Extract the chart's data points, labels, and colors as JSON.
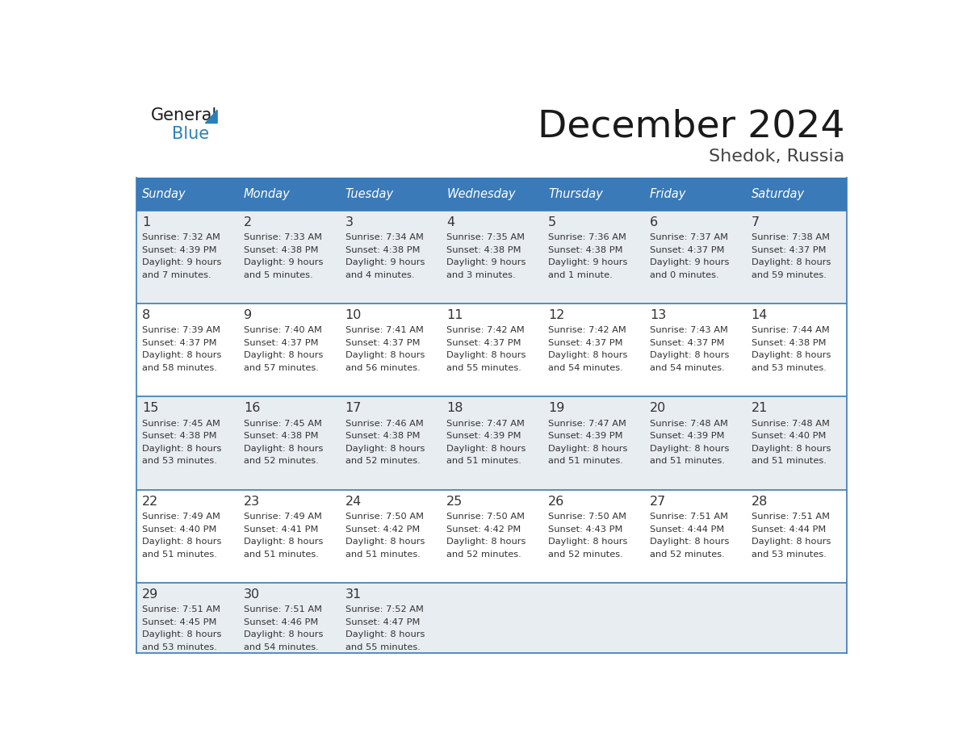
{
  "title": "December 2024",
  "subtitle": "Shedok, Russia",
  "header_color": "#3a7ab8",
  "header_text_color": "#ffffff",
  "day_names": [
    "Sunday",
    "Monday",
    "Tuesday",
    "Wednesday",
    "Thursday",
    "Friday",
    "Saturday"
  ],
  "weeks": [
    [
      {
        "day": 1,
        "sunrise": "7:32 AM",
        "sunset": "4:39 PM",
        "daylight": "9 hours",
        "daylight2": "and 7 minutes."
      },
      {
        "day": 2,
        "sunrise": "7:33 AM",
        "sunset": "4:38 PM",
        "daylight": "9 hours",
        "daylight2": "and 5 minutes."
      },
      {
        "day": 3,
        "sunrise": "7:34 AM",
        "sunset": "4:38 PM",
        "daylight": "9 hours",
        "daylight2": "and 4 minutes."
      },
      {
        "day": 4,
        "sunrise": "7:35 AM",
        "sunset": "4:38 PM",
        "daylight": "9 hours",
        "daylight2": "and 3 minutes."
      },
      {
        "day": 5,
        "sunrise": "7:36 AM",
        "sunset": "4:38 PM",
        "daylight": "9 hours",
        "daylight2": "and 1 minute."
      },
      {
        "day": 6,
        "sunrise": "7:37 AM",
        "sunset": "4:37 PM",
        "daylight": "9 hours",
        "daylight2": "and 0 minutes."
      },
      {
        "day": 7,
        "sunrise": "7:38 AM",
        "sunset": "4:37 PM",
        "daylight": "8 hours",
        "daylight2": "and 59 minutes."
      }
    ],
    [
      {
        "day": 8,
        "sunrise": "7:39 AM",
        "sunset": "4:37 PM",
        "daylight": "8 hours",
        "daylight2": "and 58 minutes."
      },
      {
        "day": 9,
        "sunrise": "7:40 AM",
        "sunset": "4:37 PM",
        "daylight": "8 hours",
        "daylight2": "and 57 minutes."
      },
      {
        "day": 10,
        "sunrise": "7:41 AM",
        "sunset": "4:37 PM",
        "daylight": "8 hours",
        "daylight2": "and 56 minutes."
      },
      {
        "day": 11,
        "sunrise": "7:42 AM",
        "sunset": "4:37 PM",
        "daylight": "8 hours",
        "daylight2": "and 55 minutes."
      },
      {
        "day": 12,
        "sunrise": "7:42 AM",
        "sunset": "4:37 PM",
        "daylight": "8 hours",
        "daylight2": "and 54 minutes."
      },
      {
        "day": 13,
        "sunrise": "7:43 AM",
        "sunset": "4:37 PM",
        "daylight": "8 hours",
        "daylight2": "and 54 minutes."
      },
      {
        "day": 14,
        "sunrise": "7:44 AM",
        "sunset": "4:38 PM",
        "daylight": "8 hours",
        "daylight2": "and 53 minutes."
      }
    ],
    [
      {
        "day": 15,
        "sunrise": "7:45 AM",
        "sunset": "4:38 PM",
        "daylight": "8 hours",
        "daylight2": "and 53 minutes."
      },
      {
        "day": 16,
        "sunrise": "7:45 AM",
        "sunset": "4:38 PM",
        "daylight": "8 hours",
        "daylight2": "and 52 minutes."
      },
      {
        "day": 17,
        "sunrise": "7:46 AM",
        "sunset": "4:38 PM",
        "daylight": "8 hours",
        "daylight2": "and 52 minutes."
      },
      {
        "day": 18,
        "sunrise": "7:47 AM",
        "sunset": "4:39 PM",
        "daylight": "8 hours",
        "daylight2": "and 51 minutes."
      },
      {
        "day": 19,
        "sunrise": "7:47 AM",
        "sunset": "4:39 PM",
        "daylight": "8 hours",
        "daylight2": "and 51 minutes."
      },
      {
        "day": 20,
        "sunrise": "7:48 AM",
        "sunset": "4:39 PM",
        "daylight": "8 hours",
        "daylight2": "and 51 minutes."
      },
      {
        "day": 21,
        "sunrise": "7:48 AM",
        "sunset": "4:40 PM",
        "daylight": "8 hours",
        "daylight2": "and 51 minutes."
      }
    ],
    [
      {
        "day": 22,
        "sunrise": "7:49 AM",
        "sunset": "4:40 PM",
        "daylight": "8 hours",
        "daylight2": "and 51 minutes."
      },
      {
        "day": 23,
        "sunrise": "7:49 AM",
        "sunset": "4:41 PM",
        "daylight": "8 hours",
        "daylight2": "and 51 minutes."
      },
      {
        "day": 24,
        "sunrise": "7:50 AM",
        "sunset": "4:42 PM",
        "daylight": "8 hours",
        "daylight2": "and 51 minutes."
      },
      {
        "day": 25,
        "sunrise": "7:50 AM",
        "sunset": "4:42 PM",
        "daylight": "8 hours",
        "daylight2": "and 52 minutes."
      },
      {
        "day": 26,
        "sunrise": "7:50 AM",
        "sunset": "4:43 PM",
        "daylight": "8 hours",
        "daylight2": "and 52 minutes."
      },
      {
        "day": 27,
        "sunrise": "7:51 AM",
        "sunset": "4:44 PM",
        "daylight": "8 hours",
        "daylight2": "and 52 minutes."
      },
      {
        "day": 28,
        "sunrise": "7:51 AM",
        "sunset": "4:44 PM",
        "daylight": "8 hours",
        "daylight2": "and 53 minutes."
      }
    ],
    [
      {
        "day": 29,
        "sunrise": "7:51 AM",
        "sunset": "4:45 PM",
        "daylight": "8 hours",
        "daylight2": "and 53 minutes."
      },
      {
        "day": 30,
        "sunrise": "7:51 AM",
        "sunset": "4:46 PM",
        "daylight": "8 hours",
        "daylight2": "and 54 minutes."
      },
      {
        "day": 31,
        "sunrise": "7:52 AM",
        "sunset": "4:47 PM",
        "daylight": "8 hours",
        "daylight2": "and 55 minutes."
      },
      null,
      null,
      null,
      null
    ]
  ],
  "row_bg_colors": [
    "#e8edf2",
    "#ffffff",
    "#e8edf2",
    "#ffffff",
    "#e8edf2"
  ],
  "separator_color": "#3a7ab8",
  "text_color": "#333333",
  "logo_color_blue": "#2980b9"
}
